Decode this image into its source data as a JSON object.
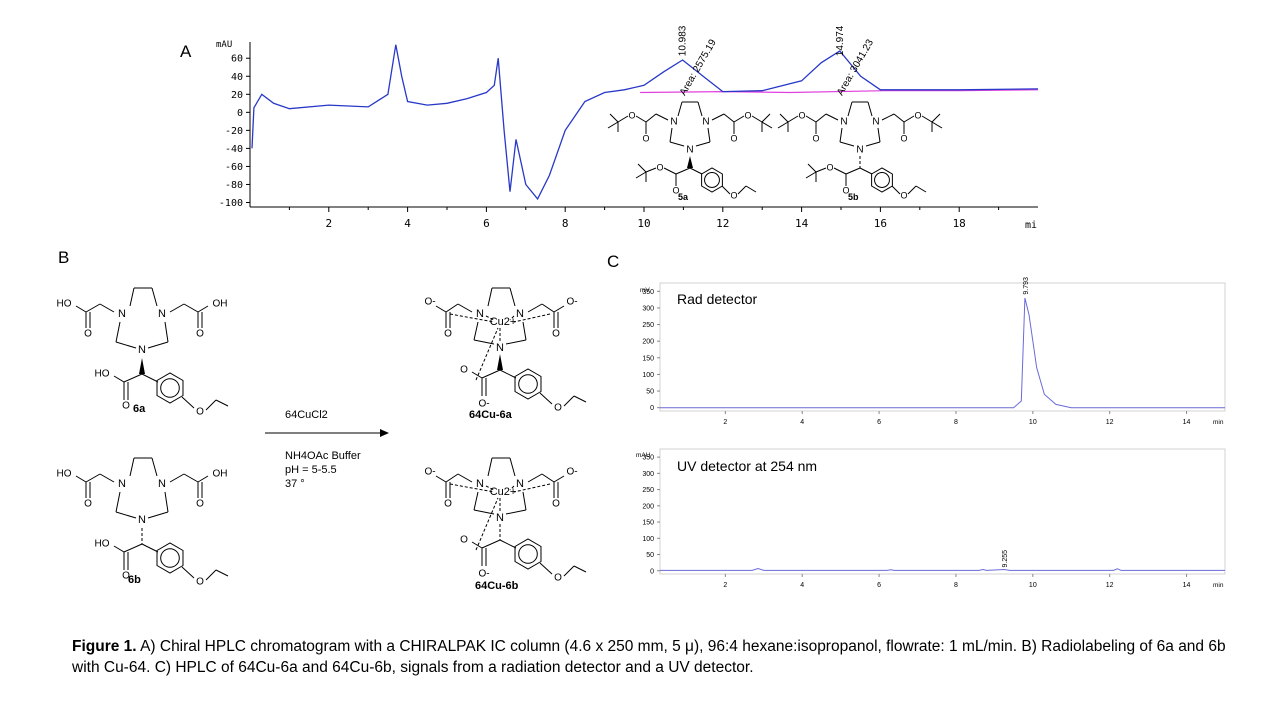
{
  "panels": {
    "A": {
      "letter": "A",
      "unit_label": "mAU",
      "time_label": "mi",
      "yticks": [
        "60",
        "40",
        "20",
        "0",
        "-20",
        "-40",
        "-60",
        "-80",
        "-100"
      ],
      "xticks": [
        "2",
        "4",
        "6",
        "8",
        "10",
        "12",
        "14",
        "16",
        "18"
      ],
      "peaks": [
        {
          "rt": "10.983",
          "area": "Area: 2575.19"
        },
        {
          "rt": "14.974",
          "area": "Area: 3041.23"
        }
      ],
      "compound_labels": [
        "5a",
        "5b"
      ]
    },
    "B": {
      "letter": "B",
      "reactant_labels": [
        "6a",
        "6b"
      ],
      "product_labels": [
        "64Cu-6a",
        "64Cu-6b"
      ],
      "reagent": "64CuCl2",
      "conditions": [
        "NH4OAc Buffer",
        "pH = 5-5.5",
        "37 °"
      ],
      "atom_labels": {
        "HO": "HO",
        "OH": "OH",
        "N": "N",
        "O": "O",
        "Ominus": "O-",
        "Cu": "Cu2+"
      }
    },
    "C": {
      "letter": "C",
      "top": {
        "title": "Rad detector",
        "unit": "mV",
        "yticks": [
          "350",
          "300",
          "250",
          "200",
          "150",
          "100",
          "50",
          "0"
        ],
        "peak_label": "9.793"
      },
      "bottom": {
        "title": "UV detector at 254 nm",
        "unit": "mAU",
        "yticks": [
          "350",
          "300",
          "250",
          "200",
          "150",
          "100",
          "50",
          "0"
        ],
        "peak_label": "9.255"
      },
      "xticks": [
        "2",
        "4",
        "6",
        "8",
        "10",
        "12",
        "14"
      ],
      "time_unit": "min"
    }
  },
  "caption": {
    "lead": "Figure 1.",
    "text": "A) Chiral HPLC chromatogram with a CHIRALPAK IC column (4.6 x 250 mm, 5 μ), 96:4 hexane:isopropanol, flowrate: 1 mL/min. B) Radiolabeling of 6a and 6b with Cu-64. C) HPLC of 64Cu-6a and 64Cu-6b, signals from a radiation detector and a UV detector."
  },
  "chart_data": [
    {
      "type": "line",
      "title": "",
      "ylabel": "mAU",
      "xlabel": "mi",
      "xlim": [
        0,
        20
      ],
      "ylim": [
        -105,
        78
      ],
      "grid": false,
      "series": [
        {
          "x": [
            0.05,
            0.1,
            0.3,
            0.6,
            1,
            2,
            3,
            3.5,
            3.7,
            3.85,
            4,
            4.5,
            5,
            5.5,
            6,
            6.2,
            6.3,
            6.45,
            6.6,
            6.75,
            6.9,
            7,
            7.3,
            7.6,
            8,
            8.5,
            9,
            9.5,
            10,
            10.5,
            10.98,
            11.5,
            12,
            13,
            14,
            14.5,
            14.97,
            15.5,
            16,
            17,
            18,
            20
          ],
          "y": [
            -40,
            5,
            20,
            10,
            4,
            8,
            6,
            20,
            75,
            40,
            12,
            8,
            10,
            15,
            22,
            30,
            60,
            -20,
            -88,
            -30,
            -60,
            -80,
            -96,
            -70,
            -20,
            12,
            22,
            25,
            30,
            45,
            58,
            40,
            23,
            24,
            35,
            55,
            68,
            40,
            25,
            25,
            25,
            26
          ]
        },
        {
          "x": [
            9.9,
            12,
            13.7,
            16.1,
            18,
            20
          ],
          "y": [
            22,
            23,
            22,
            24,
            24,
            25
          ]
        }
      ]
    },
    {
      "type": "line",
      "title": "Rad detector",
      "ylabel": "mV",
      "xlabel": "min",
      "xlim": [
        0.3,
        15
      ],
      "ylim": [
        -10,
        375
      ],
      "series": [
        {
          "x": [
            0.3,
            9.5,
            9.7,
            9.793,
            9.9,
            10.1,
            10.3,
            10.6,
            11,
            15
          ],
          "y": [
            0,
            0,
            20,
            330,
            280,
            120,
            40,
            10,
            0,
            0
          ]
        }
      ]
    },
    {
      "type": "line",
      "title": "UV detector at 254 nm",
      "ylabel": "mAU",
      "xlabel": "min",
      "xlim": [
        0.3,
        15
      ],
      "ylim": [
        -10,
        375
      ],
      "series": [
        {
          "x": [
            0.3,
            2.7,
            2.85,
            3,
            6.2,
            6.3,
            6.4,
            8.6,
            8.7,
            8.8,
            9.255,
            9.4,
            12.1,
            12.2,
            12.3,
            15
          ],
          "y": [
            1,
            1,
            7,
            1,
            1,
            3,
            1,
            1,
            4,
            1,
            4,
            1,
            1,
            6,
            1,
            1
          ]
        }
      ]
    }
  ]
}
